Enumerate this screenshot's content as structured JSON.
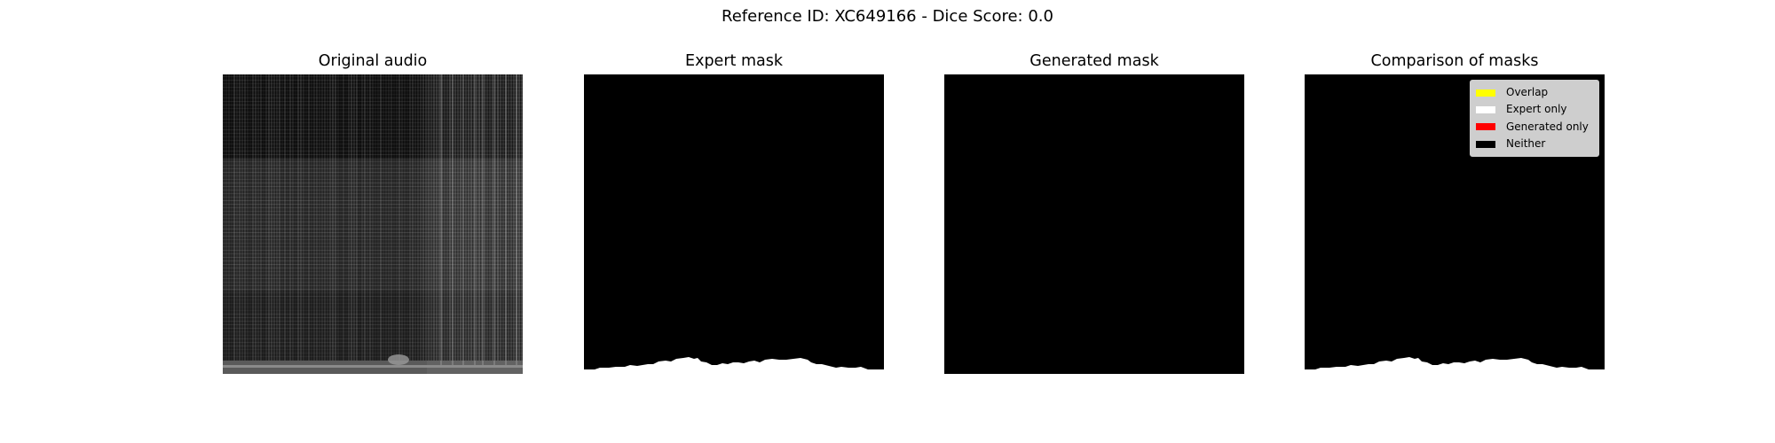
{
  "figure": {
    "suptitle": "Reference ID: XC649166 - Dice Score: 0.0"
  },
  "panels": [
    {
      "title": "Original audio"
    },
    {
      "title": "Expert mask"
    },
    {
      "title": "Generated mask"
    },
    {
      "title": "Comparison of masks"
    }
  ],
  "legend": {
    "items": [
      {
        "label": "Overlap",
        "color": "#ffff00"
      },
      {
        "label": "Expert only",
        "color": "#ffffff"
      },
      {
        "label": "Generated only",
        "color": "#ff0000"
      },
      {
        "label": "Neither",
        "color": "#000000"
      }
    ]
  },
  "colors": {
    "mask_region": "#ffffff",
    "background": "#000000"
  }
}
